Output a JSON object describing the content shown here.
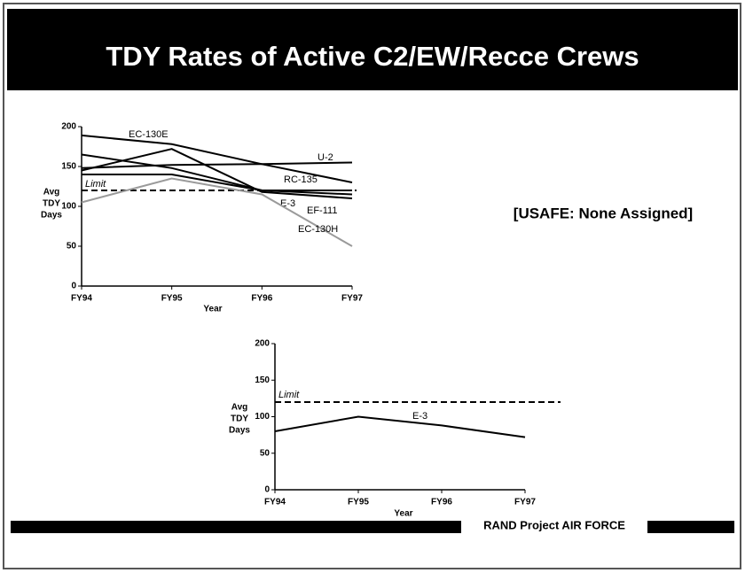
{
  "title": "TDY Rates of Active C2/EW/Recce Crews",
  "note": "[USAFE: None Assigned]",
  "footer": "RAND Project AIR FORCE",
  "chart_data": [
    {
      "type": "line",
      "categories": [
        "FY94",
        "FY95",
        "FY96",
        "FY97"
      ],
      "ylim": [
        0,
        200
      ],
      "yticks": [
        0,
        50,
        100,
        150,
        200
      ],
      "ylabel": [
        "Avg",
        "TDY",
        "Days"
      ],
      "xlabel": "Year",
      "limit": 120,
      "limit_label": "Limit",
      "series": [
        {
          "name": "EC-130E",
          "color": "#000000",
          "values": [
            189,
            178,
            153,
            130
          ]
        },
        {
          "name": "U-2",
          "color": "#000000",
          "values": [
            148,
            152,
            153,
            155
          ]
        },
        {
          "name": "RC-135",
          "color": "#000000",
          "values": [
            165,
            148,
            120,
            120
          ]
        },
        {
          "name": "E-3",
          "color": "#000000",
          "values": [
            140,
            140,
            120,
            115
          ]
        },
        {
          "name": "EF-111",
          "color": "#000000",
          "values": [
            145,
            172,
            118,
            110
          ]
        },
        {
          "name": "EC-130H",
          "color": "#9a9a9a",
          "values": [
            105,
            135,
            115,
            50
          ]
        }
      ]
    },
    {
      "type": "line",
      "categories": [
        "FY94",
        "FY95",
        "FY96",
        "FY97"
      ],
      "ylim": [
        0,
        200
      ],
      "yticks": [
        0,
        50,
        100,
        150,
        200
      ],
      "ylabel": [
        "Avg",
        "TDY",
        "Days"
      ],
      "xlabel": "Year",
      "limit": 120,
      "limit_label": "Limit",
      "series": [
        {
          "name": "E-3",
          "color": "#000000",
          "values": [
            80,
            100,
            88,
            72
          ]
        }
      ]
    }
  ]
}
